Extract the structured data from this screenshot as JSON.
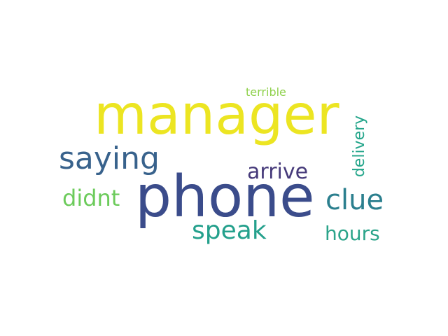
{
  "word_cloud": {
    "words": [
      {
        "id": "phone",
        "text": "phone",
        "color": "#3b4c8b"
      },
      {
        "id": "manager",
        "text": "manager",
        "color": "#ece522"
      },
      {
        "id": "saying",
        "text": "saying",
        "color": "#38628c"
      },
      {
        "id": "clue",
        "text": "clue",
        "color": "#2b7f8e"
      },
      {
        "id": "speak",
        "text": "speak",
        "color": "#24a08c"
      },
      {
        "id": "arrive",
        "text": "arrive",
        "color": "#463a7a"
      },
      {
        "id": "didnt",
        "text": "didnt",
        "color": "#6ccb5b"
      },
      {
        "id": "hours",
        "text": "hours",
        "color": "#2ba48a"
      },
      {
        "id": "delivery",
        "text": "delivery",
        "color": "#23a58a"
      },
      {
        "id": "terrible",
        "text": "terrible",
        "color": "#8fd14c"
      }
    ]
  }
}
